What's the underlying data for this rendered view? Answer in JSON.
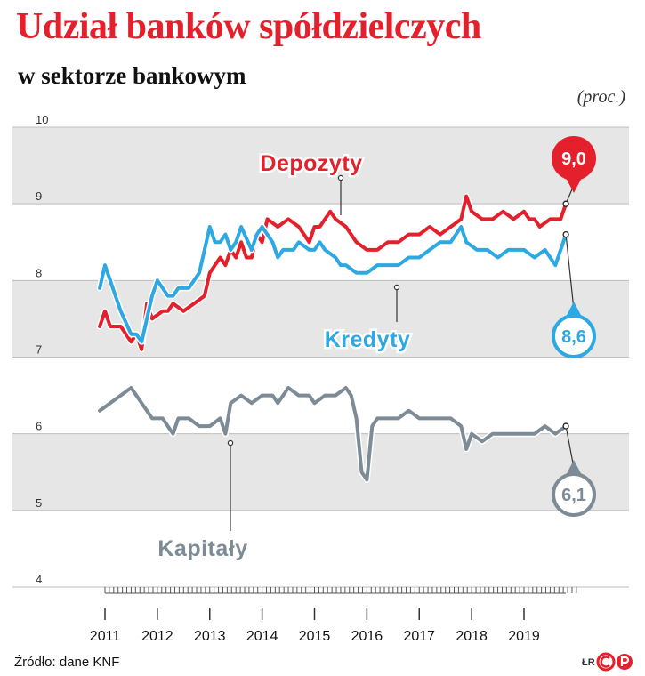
{
  "header": {
    "title": "Udział banków spółdzielczych",
    "subtitle": "w sektorze bankowym",
    "unit": "(proc.)"
  },
  "footer": {
    "source": "Źródło: dane KNF",
    "credit": "ŁR",
    "logo_text": "CP"
  },
  "colors": {
    "title": "#e3202b",
    "depozyty": "#e3202b",
    "kredyty": "#2ea8e2",
    "kapitaly": "#7c8b95",
    "band": "#e6e6e6"
  },
  "chart_data": {
    "type": "line",
    "x_ticks": [
      "2011",
      "2012",
      "2013",
      "2014",
      "2015",
      "2016",
      "2017",
      "2018",
      "2019"
    ],
    "y_ticks": [
      "4",
      "5",
      "6",
      "7",
      "8",
      "9",
      "10"
    ],
    "ylim": [
      4,
      10
    ],
    "xlim": [
      2010.8,
      2020.1
    ],
    "grid": "alternating horizontal bands",
    "series": [
      {
        "name": "Depozyty",
        "color": "#e3202b",
        "end_label": "9,0",
        "points": [
          [
            2010.9,
            7.4
          ],
          [
            2011.0,
            7.6
          ],
          [
            2011.1,
            7.4
          ],
          [
            2011.3,
            7.4
          ],
          [
            2011.5,
            7.2
          ],
          [
            2011.6,
            7.3
          ],
          [
            2011.7,
            7.1
          ],
          [
            2011.8,
            7.7
          ],
          [
            2011.9,
            7.5
          ],
          [
            2012.1,
            7.6
          ],
          [
            2012.2,
            7.6
          ],
          [
            2012.3,
            7.7
          ],
          [
            2012.5,
            7.6
          ],
          [
            2012.7,
            7.7
          ],
          [
            2012.9,
            7.8
          ],
          [
            2013.0,
            8.1
          ],
          [
            2013.1,
            8.2
          ],
          [
            2013.2,
            8.3
          ],
          [
            2013.3,
            8.2
          ],
          [
            2013.4,
            8.4
          ],
          [
            2013.5,
            8.3
          ],
          [
            2013.6,
            8.5
          ],
          [
            2013.7,
            8.3
          ],
          [
            2013.8,
            8.3
          ],
          [
            2013.9,
            8.6
          ],
          [
            2014.0,
            8.5
          ],
          [
            2014.1,
            8.8
          ],
          [
            2014.3,
            8.7
          ],
          [
            2014.5,
            8.8
          ],
          [
            2014.7,
            8.7
          ],
          [
            2014.9,
            8.5
          ],
          [
            2015.0,
            8.7
          ],
          [
            2015.1,
            8.7
          ],
          [
            2015.3,
            8.9
          ],
          [
            2015.4,
            8.8
          ],
          [
            2015.6,
            8.7
          ],
          [
            2015.8,
            8.5
          ],
          [
            2016.0,
            8.4
          ],
          [
            2016.2,
            8.4
          ],
          [
            2016.4,
            8.5
          ],
          [
            2016.6,
            8.5
          ],
          [
            2016.8,
            8.6
          ],
          [
            2017.0,
            8.6
          ],
          [
            2017.2,
            8.7
          ],
          [
            2017.4,
            8.6
          ],
          [
            2017.6,
            8.7
          ],
          [
            2017.8,
            8.8
          ],
          [
            2017.9,
            9.1
          ],
          [
            2018.0,
            8.9
          ],
          [
            2018.2,
            8.8
          ],
          [
            2018.4,
            8.8
          ],
          [
            2018.6,
            8.9
          ],
          [
            2018.8,
            8.8
          ],
          [
            2019.0,
            8.9
          ],
          [
            2019.1,
            8.8
          ],
          [
            2019.2,
            8.8
          ],
          [
            2019.3,
            8.7
          ],
          [
            2019.5,
            8.8
          ],
          [
            2019.7,
            8.8
          ],
          [
            2019.8,
            9.0
          ]
        ]
      },
      {
        "name": "Kredyty",
        "color": "#2ea8e2",
        "end_label": "8,6",
        "points": [
          [
            2010.9,
            7.9
          ],
          [
            2011.0,
            8.2
          ],
          [
            2011.1,
            8.0
          ],
          [
            2011.2,
            7.8
          ],
          [
            2011.3,
            7.6
          ],
          [
            2011.5,
            7.3
          ],
          [
            2011.6,
            7.3
          ],
          [
            2011.7,
            7.2
          ],
          [
            2011.8,
            7.5
          ],
          [
            2011.9,
            7.8
          ],
          [
            2012.0,
            8.0
          ],
          [
            2012.1,
            7.9
          ],
          [
            2012.2,
            7.8
          ],
          [
            2012.3,
            7.8
          ],
          [
            2012.4,
            7.9
          ],
          [
            2012.6,
            7.9
          ],
          [
            2012.8,
            8.1
          ],
          [
            2013.0,
            8.7
          ],
          [
            2013.1,
            8.5
          ],
          [
            2013.2,
            8.5
          ],
          [
            2013.3,
            8.6
          ],
          [
            2013.4,
            8.4
          ],
          [
            2013.5,
            8.5
          ],
          [
            2013.6,
            8.7
          ],
          [
            2013.8,
            8.4
          ],
          [
            2013.9,
            8.6
          ],
          [
            2014.0,
            8.7
          ],
          [
            2014.1,
            8.6
          ],
          [
            2014.2,
            8.5
          ],
          [
            2014.3,
            8.3
          ],
          [
            2014.4,
            8.4
          ],
          [
            2014.6,
            8.4
          ],
          [
            2014.7,
            8.5
          ],
          [
            2014.9,
            8.4
          ],
          [
            2015.0,
            8.4
          ],
          [
            2015.1,
            8.5
          ],
          [
            2015.2,
            8.4
          ],
          [
            2015.4,
            8.3
          ],
          [
            2015.5,
            8.2
          ],
          [
            2015.6,
            8.2
          ],
          [
            2015.8,
            8.1
          ],
          [
            2016.0,
            8.1
          ],
          [
            2016.2,
            8.2
          ],
          [
            2016.4,
            8.2
          ],
          [
            2016.6,
            8.2
          ],
          [
            2016.8,
            8.3
          ],
          [
            2017.0,
            8.3
          ],
          [
            2017.2,
            8.4
          ],
          [
            2017.4,
            8.5
          ],
          [
            2017.6,
            8.5
          ],
          [
            2017.8,
            8.7
          ],
          [
            2017.9,
            8.5
          ],
          [
            2018.1,
            8.4
          ],
          [
            2018.3,
            8.4
          ],
          [
            2018.5,
            8.3
          ],
          [
            2018.7,
            8.4
          ],
          [
            2019.0,
            8.4
          ],
          [
            2019.2,
            8.3
          ],
          [
            2019.4,
            8.4
          ],
          [
            2019.6,
            8.2
          ],
          [
            2019.8,
            8.6
          ]
        ]
      },
      {
        "name": "Kapitały",
        "color": "#7c8b95",
        "end_label": "6,1",
        "points": [
          [
            2010.9,
            6.3
          ],
          [
            2011.1,
            6.4
          ],
          [
            2011.3,
            6.5
          ],
          [
            2011.5,
            6.6
          ],
          [
            2011.6,
            6.5
          ],
          [
            2011.7,
            6.4
          ],
          [
            2011.8,
            6.3
          ],
          [
            2011.9,
            6.2
          ],
          [
            2012.0,
            6.2
          ],
          [
            2012.1,
            6.2
          ],
          [
            2012.2,
            6.1
          ],
          [
            2012.3,
            6.0
          ],
          [
            2012.4,
            6.2
          ],
          [
            2012.6,
            6.2
          ],
          [
            2012.8,
            6.1
          ],
          [
            2013.0,
            6.1
          ],
          [
            2013.2,
            6.2
          ],
          [
            2013.3,
            6.0
          ],
          [
            2013.4,
            6.4
          ],
          [
            2013.6,
            6.5
          ],
          [
            2013.8,
            6.4
          ],
          [
            2014.0,
            6.5
          ],
          [
            2014.2,
            6.5
          ],
          [
            2014.3,
            6.4
          ],
          [
            2014.5,
            6.6
          ],
          [
            2014.7,
            6.5
          ],
          [
            2014.9,
            6.5
          ],
          [
            2015.0,
            6.4
          ],
          [
            2015.2,
            6.5
          ],
          [
            2015.4,
            6.5
          ],
          [
            2015.6,
            6.6
          ],
          [
            2015.7,
            6.5
          ],
          [
            2015.8,
            6.2
          ],
          [
            2015.9,
            5.5
          ],
          [
            2016.0,
            5.4
          ],
          [
            2016.1,
            6.1
          ],
          [
            2016.2,
            6.2
          ],
          [
            2016.4,
            6.2
          ],
          [
            2016.6,
            6.2
          ],
          [
            2016.8,
            6.3
          ],
          [
            2017.0,
            6.2
          ],
          [
            2017.2,
            6.2
          ],
          [
            2017.4,
            6.2
          ],
          [
            2017.6,
            6.2
          ],
          [
            2017.8,
            6.1
          ],
          [
            2017.9,
            5.8
          ],
          [
            2018.0,
            6.0
          ],
          [
            2018.2,
            5.9
          ],
          [
            2018.4,
            6.0
          ],
          [
            2018.6,
            6.0
          ],
          [
            2018.8,
            6.0
          ],
          [
            2019.0,
            6.0
          ],
          [
            2019.2,
            6.0
          ],
          [
            2019.4,
            6.1
          ],
          [
            2019.6,
            6.0
          ],
          [
            2019.8,
            6.1
          ]
        ]
      }
    ]
  }
}
